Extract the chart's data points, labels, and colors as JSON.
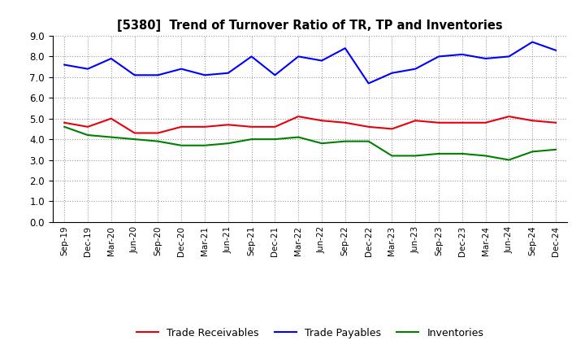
{
  "title": "[5380]  Trend of Turnover Ratio of TR, TP and Inventories",
  "x_labels": [
    "Sep-19",
    "Dec-19",
    "Mar-20",
    "Jun-20",
    "Sep-20",
    "Dec-20",
    "Mar-21",
    "Jun-21",
    "Sep-21",
    "Dec-21",
    "Mar-22",
    "Jun-22",
    "Sep-22",
    "Dec-22",
    "Mar-23",
    "Jun-23",
    "Sep-23",
    "Dec-23",
    "Mar-24",
    "Jun-24",
    "Sep-24",
    "Dec-24"
  ],
  "trade_receivables": [
    4.8,
    4.6,
    5.0,
    4.3,
    4.3,
    4.6,
    4.6,
    4.7,
    4.6,
    4.6,
    5.1,
    4.9,
    4.8,
    4.6,
    4.5,
    4.9,
    4.8,
    4.8,
    4.8,
    5.1,
    4.9,
    4.8
  ],
  "trade_payables": [
    7.6,
    7.4,
    7.9,
    7.1,
    7.1,
    7.4,
    7.1,
    7.2,
    8.0,
    7.1,
    8.0,
    7.8,
    8.4,
    6.7,
    7.2,
    7.4,
    8.0,
    8.1,
    7.9,
    8.0,
    8.7,
    8.3
  ],
  "inventories": [
    4.6,
    4.2,
    4.1,
    4.0,
    3.9,
    3.7,
    3.7,
    3.8,
    4.0,
    4.0,
    4.1,
    3.8,
    3.9,
    3.9,
    3.2,
    3.2,
    3.3,
    3.3,
    3.2,
    3.0,
    3.4,
    3.5
  ],
  "tr_color": "#e8000d",
  "tp_color": "#0000ff",
  "inv_color": "#008000",
  "ylim": [
    0.0,
    9.0
  ],
  "yticks": [
    0.0,
    1.0,
    2.0,
    3.0,
    4.0,
    5.0,
    6.0,
    7.0,
    8.0,
    9.0
  ],
  "legend_labels": [
    "Trade Receivables",
    "Trade Payables",
    "Inventories"
  ],
  "background_color": "#ffffff",
  "grid_color": "#999999"
}
